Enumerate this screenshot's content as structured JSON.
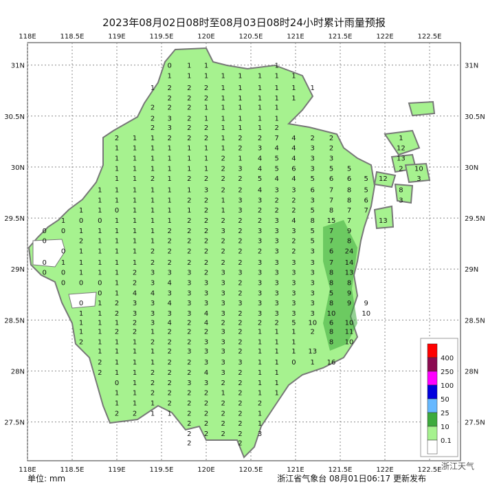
{
  "map": {
    "title": "2023年08月02日08时至08月03日08时24小时累计雨量预报",
    "unit": "单位: mm",
    "footer": "浙江省气象台 08月01日06:17 更新发布",
    "watermark": "浙江天气",
    "xlim": [
      118,
      122.846
    ],
    "ylim": [
      27.12,
      31.22
    ],
    "xticks": [
      {
        "value": 118,
        "label": "118E"
      },
      {
        "value": 118.5,
        "label": "118.5E"
      },
      {
        "value": 119,
        "label": "119E"
      },
      {
        "value": 119.5,
        "label": "119.5E"
      },
      {
        "value": 120,
        "label": "120E"
      },
      {
        "value": 120.5,
        "label": "120.5E"
      },
      {
        "value": 121,
        "label": "121E"
      },
      {
        "value": 121.5,
        "label": "121.5E"
      },
      {
        "value": 122,
        "label": "122E"
      },
      {
        "value": 122.5,
        "label": "122.5E"
      }
    ],
    "yticks": [
      {
        "value": 31,
        "label": "31N"
      },
      {
        "value": 30.5,
        "label": "30.5N"
      },
      {
        "value": 30,
        "label": "30N"
      },
      {
        "value": 29.5,
        "label": "29.5N"
      },
      {
        "value": 29,
        "label": "29N"
      },
      {
        "value": 28.5,
        "label": "28.5N"
      },
      {
        "value": 28,
        "label": "28N"
      },
      {
        "value": 27.5,
        "label": "27.5N"
      }
    ],
    "legend": {
      "colors": [
        "#ff0000",
        "#8b0a50",
        "#ff00ff",
        "#0000dd",
        "#66b8ff",
        "#3daa3d",
        "#a6f28f",
        "#ffffff"
      ],
      "labels": [
        400,
        250,
        100,
        50,
        25,
        10,
        0.1
      ]
    },
    "grid": {
      "lons": [
        118.19,
        118.4,
        118.6,
        118.81,
        119,
        119.2,
        119.4,
        119.59,
        119.81,
        120,
        120.19,
        120.38,
        120.6,
        120.79,
        120.98,
        121.19,
        121.4,
        121.6,
        121.79,
        121.98,
        122.18,
        122.38
      ],
      "rows": [
        {
          "lat": 31.0,
          "values": [
            null,
            null,
            null,
            null,
            null,
            null,
            null,
            0,
            1,
            1,
            null,
            null,
            null,
            1,
            null,
            null,
            null,
            null,
            null,
            null,
            null,
            null
          ]
        },
        {
          "lat": 30.9,
          "values": [
            null,
            null,
            null,
            null,
            null,
            null,
            null,
            1,
            1,
            1,
            1,
            1,
            1,
            1,
            1,
            null,
            null,
            null,
            null,
            null,
            null,
            null
          ]
        },
        {
          "lat": 30.78,
          "values": [
            null,
            null,
            null,
            null,
            null,
            null,
            1,
            2,
            2,
            2,
            1,
            1,
            1,
            1,
            1,
            1,
            null,
            null,
            null,
            null,
            null,
            null
          ]
        },
        {
          "lat": 30.68,
          "values": [
            null,
            null,
            null,
            null,
            null,
            null,
            null,
            2,
            2,
            2,
            1,
            1,
            1,
            1,
            1,
            null,
            null,
            null,
            null,
            null,
            null,
            null
          ]
        },
        {
          "lat": 30.59,
          "values": [
            null,
            null,
            null,
            null,
            null,
            null,
            2,
            2,
            2,
            1,
            1,
            1,
            1,
            1,
            null,
            null,
            null,
            null,
            null,
            null,
            null,
            null
          ]
        },
        {
          "lat": 30.48,
          "values": [
            null,
            null,
            null,
            null,
            null,
            null,
            2,
            3,
            2,
            1,
            1,
            1,
            1,
            1,
            null,
            null,
            null,
            null,
            null,
            null,
            null,
            null
          ]
        },
        {
          "lat": 30.39,
          "values": [
            null,
            null,
            null,
            null,
            null,
            null,
            2,
            3,
            2,
            2,
            1,
            1,
            1,
            2,
            null,
            null,
            null,
            null,
            null,
            null,
            null,
            null
          ]
        },
        {
          "lat": 30.29,
          "values": [
            null,
            null,
            null,
            null,
            2,
            1,
            1,
            2,
            2,
            2,
            1,
            2,
            2,
            7,
            4,
            2,
            2,
            null,
            null,
            null,
            1,
            null
          ]
        },
        {
          "lat": 30.19,
          "values": [
            null,
            null,
            null,
            null,
            1,
            1,
            1,
            1,
            1,
            1,
            1,
            2,
            3,
            4,
            4,
            3,
            2,
            null,
            null,
            null,
            12,
            null
          ]
        },
        {
          "lat": 30.09,
          "values": [
            null,
            null,
            null,
            null,
            1,
            1,
            1,
            1,
            1,
            1,
            2,
            1,
            4,
            5,
            4,
            3,
            3,
            null,
            null,
            null,
            13,
            null
          ]
        },
        {
          "lat": 29.99,
          "values": [
            null,
            null,
            null,
            null,
            1,
            1,
            1,
            1,
            1,
            1,
            2,
            3,
            4,
            5,
            6,
            3,
            5,
            5,
            null,
            null,
            2,
            10
          ]
        },
        {
          "lat": 29.89,
          "values": [
            null,
            null,
            null,
            null,
            1,
            1,
            2,
            1,
            2,
            2,
            2,
            2,
            5,
            4,
            4,
            5,
            6,
            6,
            5,
            12,
            null,
            3
          ]
        },
        {
          "lat": 29.78,
          "values": [
            null,
            null,
            null,
            1,
            1,
            1,
            1,
            1,
            1,
            3,
            2,
            2,
            4,
            3,
            3,
            6,
            7,
            8,
            5,
            null,
            8,
            null
          ]
        },
        {
          "lat": 29.68,
          "values": [
            null,
            null,
            null,
            1,
            1,
            1,
            1,
            1,
            2,
            2,
            1,
            3,
            3,
            2,
            2,
            3,
            7,
            8,
            6,
            null,
            3,
            null
          ]
        },
        {
          "lat": 29.58,
          "values": [
            null,
            null,
            1,
            1,
            0,
            1,
            1,
            1,
            1,
            2,
            1,
            3,
            2,
            2,
            2,
            5,
            8,
            7,
            7,
            null,
            null,
            null
          ]
        },
        {
          "lat": 29.48,
          "values": [
            null,
            1,
            0,
            0,
            1,
            1,
            1,
            1,
            2,
            2,
            2,
            2,
            2,
            3,
            4,
            8,
            15,
            7,
            null,
            13,
            null,
            null
          ]
        },
        {
          "lat": 29.38,
          "values": [
            0,
            0,
            1,
            1,
            1,
            1,
            1,
            2,
            2,
            2,
            3,
            2,
            3,
            3,
            3,
            5,
            7,
            9,
            null,
            null,
            null,
            null
          ]
        },
        {
          "lat": 29.28,
          "values": [
            0,
            null,
            2,
            1,
            1,
            1,
            1,
            2,
            2,
            2,
            2,
            2,
            3,
            3,
            2,
            5,
            7,
            8,
            null,
            null,
            null,
            null
          ]
        },
        {
          "lat": 29.18,
          "values": [
            null,
            0,
            1,
            1,
            1,
            1,
            2,
            2,
            2,
            2,
            2,
            2,
            2,
            3,
            2,
            3,
            6,
            24,
            null,
            null,
            null,
            null
          ]
        },
        {
          "lat": 29.07,
          "values": [
            0,
            1,
            1,
            1,
            1,
            1,
            2,
            2,
            2,
            2,
            2,
            2,
            3,
            3,
            3,
            3,
            7,
            14,
            null,
            null,
            null,
            null
          ]
        },
        {
          "lat": 28.97,
          "values": [
            0,
            0,
            1,
            1,
            1,
            2,
            3,
            3,
            3,
            2,
            3,
            3,
            3,
            3,
            3,
            3,
            8,
            13,
            null,
            null,
            null,
            null
          ]
        },
        {
          "lat": 28.87,
          "values": [
            null,
            0,
            0,
            0,
            1,
            2,
            3,
            4,
            3,
            3,
            3,
            2,
            3,
            3,
            3,
            3,
            8,
            8,
            null,
            null,
            null,
            null
          ]
        },
        {
          "lat": 28.77,
          "values": [
            null,
            null,
            null,
            0,
            1,
            4,
            4,
            3,
            3,
            3,
            3,
            2,
            3,
            3,
            3,
            3,
            5,
            9,
            null,
            null,
            null,
            null
          ]
        },
        {
          "lat": 28.67,
          "values": [
            null,
            null,
            0,
            1,
            2,
            3,
            3,
            4,
            3,
            3,
            3,
            3,
            3,
            3,
            3,
            3,
            8,
            9,
            9,
            null,
            null,
            null
          ]
        },
        {
          "lat": 28.57,
          "values": [
            null,
            null,
            1,
            1,
            2,
            3,
            3,
            3,
            3,
            4,
            3,
            2,
            3,
            3,
            3,
            3,
            10,
            null,
            10,
            null,
            null,
            null
          ]
        },
        {
          "lat": 28.48,
          "values": [
            null,
            null,
            1,
            1,
            1,
            2,
            3,
            4,
            2,
            4,
            2,
            2,
            2,
            2,
            5,
            10,
            6,
            10,
            null,
            null,
            null,
            null
          ]
        },
        {
          "lat": 28.39,
          "values": [
            null,
            null,
            1,
            1,
            2,
            2,
            1,
            2,
            2,
            2,
            3,
            2,
            1,
            1,
            1,
            2,
            8,
            11,
            null,
            null,
            null,
            null
          ]
        },
        {
          "lat": 28.29,
          "values": [
            null,
            null,
            2,
            1,
            1,
            1,
            2,
            2,
            2,
            3,
            3,
            2,
            1,
            1,
            1,
            null,
            8,
            10,
            null,
            null,
            null,
            null
          ]
        },
        {
          "lat": 28.2,
          "values": [
            null,
            null,
            null,
            1,
            1,
            1,
            1,
            2,
            3,
            3,
            3,
            2,
            1,
            1,
            1,
            13,
            null,
            null,
            null,
            null,
            null,
            null
          ]
        },
        {
          "lat": 28.09,
          "values": [
            null,
            null,
            null,
            2,
            1,
            1,
            1,
            2,
            2,
            3,
            3,
            3,
            1,
            1,
            0,
            1,
            16,
            null,
            null,
            null,
            null,
            null
          ]
        },
        {
          "lat": 27.99,
          "values": [
            null,
            null,
            null,
            2,
            1,
            1,
            2,
            2,
            2,
            4,
            3,
            2,
            1,
            1,
            null,
            null,
            null,
            null,
            null,
            null,
            null,
            null
          ]
        },
        {
          "lat": 27.89,
          "values": [
            null,
            null,
            null,
            null,
            0,
            1,
            2,
            2,
            3,
            3,
            2,
            2,
            1,
            1,
            null,
            null,
            null,
            null,
            null,
            null,
            null,
            null
          ]
        },
        {
          "lat": 27.79,
          "values": [
            null,
            null,
            null,
            null,
            1,
            1,
            2,
            2,
            2,
            2,
            1,
            2,
            1,
            1,
            null,
            null,
            null,
            null,
            null,
            null,
            null,
            null
          ]
        },
        {
          "lat": 27.69,
          "values": [
            null,
            null,
            null,
            null,
            1,
            1,
            1,
            2,
            2,
            2,
            2,
            2,
            2,
            null,
            null,
            null,
            null,
            null,
            null,
            null,
            null,
            null
          ]
        },
        {
          "lat": 27.59,
          "values": [
            null,
            null,
            null,
            null,
            2,
            2,
            1,
            1,
            2,
            2,
            2,
            2,
            1,
            null,
            null,
            null,
            null,
            null,
            null,
            null,
            null,
            null
          ]
        },
        {
          "lat": 27.49,
          "values": [
            null,
            null,
            null,
            null,
            null,
            null,
            null,
            null,
            2,
            2,
            2,
            2,
            1,
            null,
            null,
            null,
            null,
            null,
            null,
            null,
            null,
            null
          ]
        },
        {
          "lat": 27.39,
          "values": [
            null,
            null,
            null,
            null,
            null,
            null,
            null,
            null,
            2,
            2,
            2,
            2,
            3,
            null,
            null,
            null,
            null,
            null,
            null,
            null,
            null,
            null
          ]
        },
        {
          "lat": 27.3,
          "values": [
            null,
            null,
            null,
            null,
            null,
            null,
            null,
            null,
            2,
            null,
            null,
            2,
            null,
            null,
            null,
            null,
            null,
            null,
            null,
            null,
            null,
            null
          ]
        }
      ]
    }
  }
}
